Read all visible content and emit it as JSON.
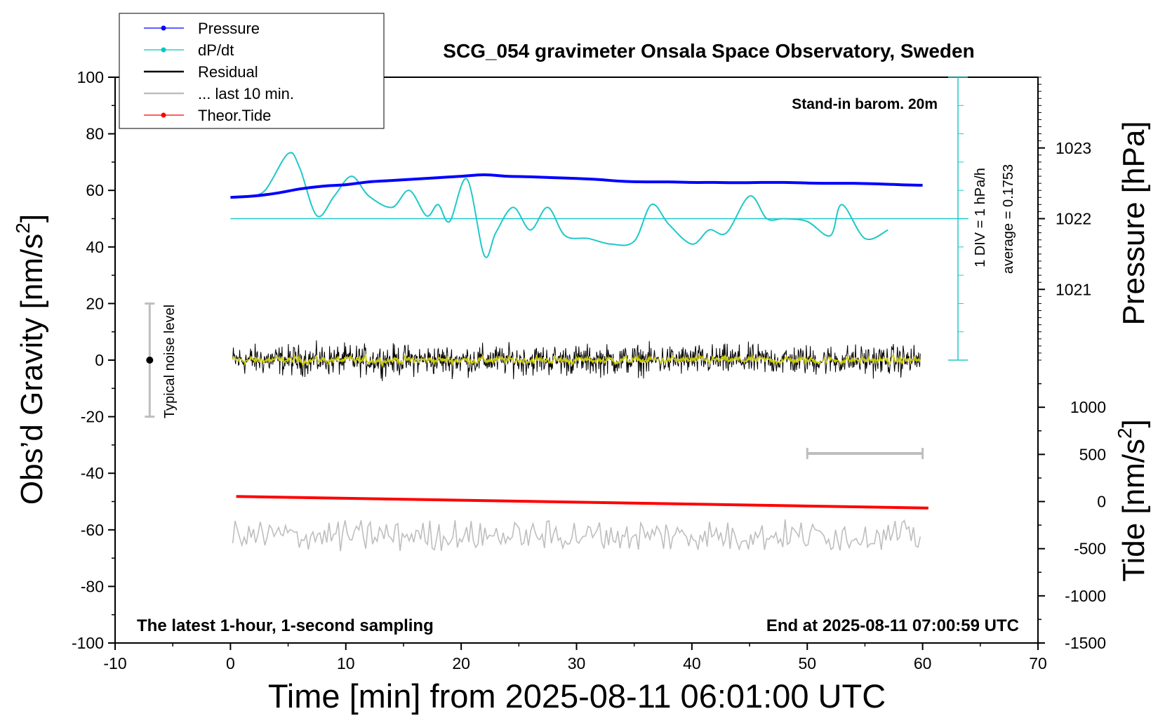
{
  "chart_data": {
    "type": "line",
    "title": "SCG_054 gravimeter Onsala Space Observatory, Sweden",
    "xlabel_prefix": "Time [min] from 2025-08-11 06:01:00 UTC",
    "ylabel_left": "Obs’d Gravity [nm/s",
    "ylabel_left_sup": "2",
    "ylabel_left_suffix": "]",
    "ylabel_right_top": "Pressure [hPa]",
    "ylabel_right_bottom": "Tide [nm/s",
    "ylabel_right_bottom_sup": "2",
    "ylabel_right_bottom_suffix": "]",
    "xlim": [
      -10,
      70
    ],
    "ylim": [
      -100,
      100
    ],
    "x_ticks": [
      -10,
      0,
      10,
      20,
      30,
      40,
      50,
      60,
      70
    ],
    "y_ticks": [
      100,
      80,
      60,
      40,
      20,
      0,
      -20,
      -40,
      -60,
      -80,
      -100
    ],
    "pressure_axis": {
      "ticks": [
        1023,
        1022,
        1021
      ],
      "gravity_at_1022": 50,
      "gravity_per_hPa": 25
    },
    "tide_axis": {
      "ticks": [
        1000,
        500,
        0,
        -500,
        -1000,
        -1500
      ],
      "gravity_at_0": -50,
      "gravity_per_unit": 0.03333
    },
    "annotations": {
      "barometer": "Stand-in barom. 20m",
      "div": "1 DIV = 1 hPa/h",
      "average": "average = 0.1753",
      "noise": "Typical noise level",
      "bottom_left": "The latest 1-hour, 1-second sampling",
      "bottom_right": "End at 2025-08-11 07:00:59 UTC"
    },
    "legend": [
      {
        "label": "Pressure",
        "color": "#0000ff",
        "marker": true
      },
      {
        "label": "dP/dt",
        "color": "#00c8c8",
        "marker": true
      },
      {
        "label": "Residual",
        "color": "#000000",
        "marker": false
      },
      {
        "label": "... last 10 min.",
        "color": "#bebebe",
        "marker": false
      },
      {
        "label": "Theor.Tide",
        "color": "#ff0000",
        "marker": true
      }
    ],
    "colors": {
      "pressure": "#0000ff",
      "dpdt": "#20c8c8",
      "residual": "#000000",
      "smooth": "#c8c800",
      "last10": "#bebebe",
      "tide": "#ff0000"
    },
    "series": [
      {
        "name": "Pressure",
        "x": [
          0,
          2,
          4,
          6,
          8,
          10,
          12,
          14,
          16,
          18,
          20,
          22,
          24,
          26,
          28,
          30,
          32,
          34,
          36,
          38,
          40,
          42,
          44,
          46,
          48,
          50,
          52,
          54,
          56,
          58,
          60
        ],
        "y": [
          57.5,
          58,
          59,
          60.5,
          61.5,
          62,
          63,
          63.5,
          64,
          64.5,
          65,
          65.5,
          65,
          64.8,
          64.5,
          64.2,
          63.8,
          63.2,
          63,
          63,
          62.8,
          62.8,
          62.7,
          62.8,
          62.8,
          62.6,
          62.5,
          62.5,
          62.3,
          62,
          61.8
        ]
      },
      {
        "name": "dP/dt",
        "x": [
          1.5,
          3,
          5,
          6,
          7.5,
          9,
          10.5,
          12,
          14,
          15.5,
          17,
          18,
          19,
          20.5,
          22,
          23,
          24.5,
          26,
          27.5,
          29,
          31,
          33,
          35,
          36.5,
          38,
          40,
          41.5,
          43,
          45,
          46.5,
          48,
          50,
          52,
          53,
          55,
          57
        ],
        "y": [
          58,
          60,
          73,
          68,
          51,
          58,
          65,
          58,
          54,
          60,
          51,
          55,
          49,
          64,
          37,
          45,
          54,
          46,
          54,
          44,
          43,
          41,
          42,
          55,
          48,
          41,
          46,
          45,
          58,
          50,
          50,
          49,
          44,
          55,
          43,
          46
        ]
      },
      {
        "name": "Theor.Tide",
        "x": [
          0.5,
          60.5
        ],
        "y": [
          -48.2,
          -52.3
        ]
      }
    ],
    "residual_range": [
      -8,
      8
    ],
    "last10_center": -62,
    "last10_bar": {
      "x": [
        50,
        60
      ],
      "y": -33
    },
    "noise_bar": {
      "x": -7,
      "y": [
        -20,
        20
      ]
    }
  }
}
